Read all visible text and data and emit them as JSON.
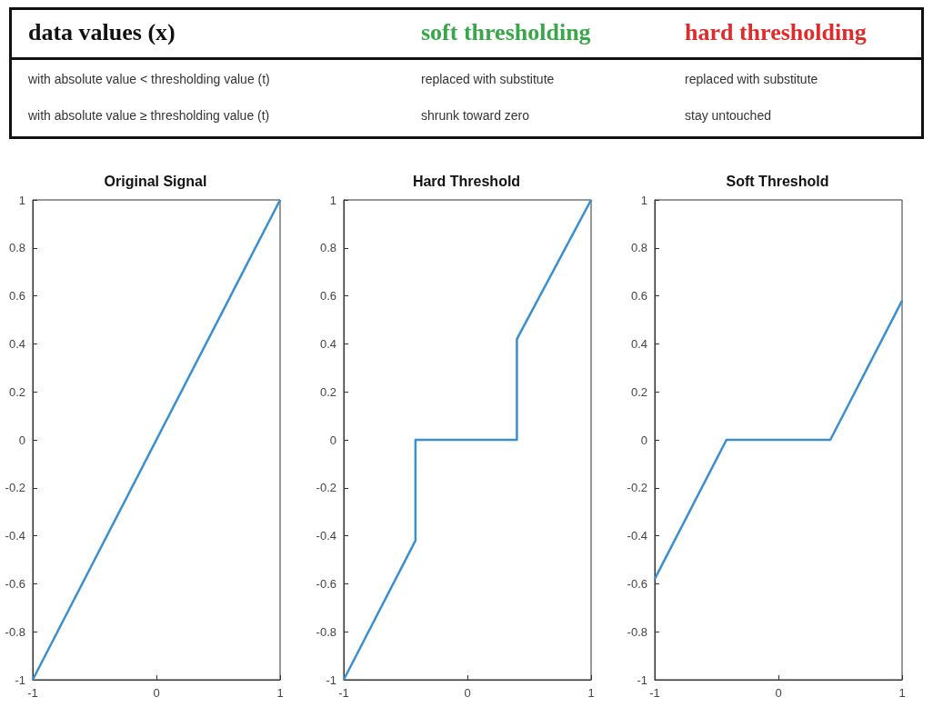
{
  "chart_data": [
    {
      "type": "other",
      "annotations": [
        "data values (x)",
        "soft thresholding",
        "hard thresholding",
        "with absolute value < thresholding value (t)",
        "replaced with substitute",
        "replaced with substitute",
        "with absolute value ≥ thresholding value (t)",
        "shrunk toward zero",
        "stay untouched"
      ]
    },
    {
      "type": "line",
      "title": "Original Signal",
      "x": [
        -1,
        1
      ],
      "series": [
        {
          "color": "#3a8fd0",
          "values": [
            -1,
            1
          ]
        }
      ],
      "xlim": [
        -1,
        1
      ],
      "ylim": [
        -1,
        1
      ],
      "xticks": [
        -1,
        0,
        1
      ],
      "yticks": [
        -1,
        -0.8,
        -0.6,
        -0.4,
        -0.2,
        0,
        0.2,
        0.4,
        0.6,
        0.8,
        1
      ],
      "grid": false,
      "marker": "none"
    },
    {
      "type": "line",
      "title": "Hard Threshold",
      "x": [
        -1,
        -0.42,
        -0.42,
        0.4,
        0.4,
        1
      ],
      "series": [
        {
          "color": "#3a8fd0",
          "values": [
            -1,
            -0.42,
            0,
            0,
            0.42,
            1
          ]
        }
      ],
      "xlim": [
        -1,
        1
      ],
      "ylim": [
        -1,
        1
      ],
      "xticks": [
        -1,
        0,
        1
      ],
      "yticks": [
        -1,
        -0.8,
        -0.6,
        -0.4,
        -0.2,
        0,
        0.2,
        0.4,
        0.6,
        0.8,
        1
      ],
      "grid": false,
      "marker": "none"
    },
    {
      "type": "line",
      "title": "Soft Threshold",
      "x": [
        -1,
        -0.42,
        0.42,
        1
      ],
      "series": [
        {
          "color": "#3a8fd0",
          "values": [
            -0.58,
            0,
            0,
            0.58
          ]
        }
      ],
      "xlim": [
        -1,
        1
      ],
      "ylim": [
        -1,
        1
      ],
      "xticks": [
        -1,
        0,
        1
      ],
      "yticks": [
        -1,
        -0.8,
        -0.6,
        -0.4,
        -0.2,
        0,
        0.2,
        0.4,
        0.6,
        0.8,
        1
      ],
      "grid": false,
      "marker": "none"
    }
  ]
}
